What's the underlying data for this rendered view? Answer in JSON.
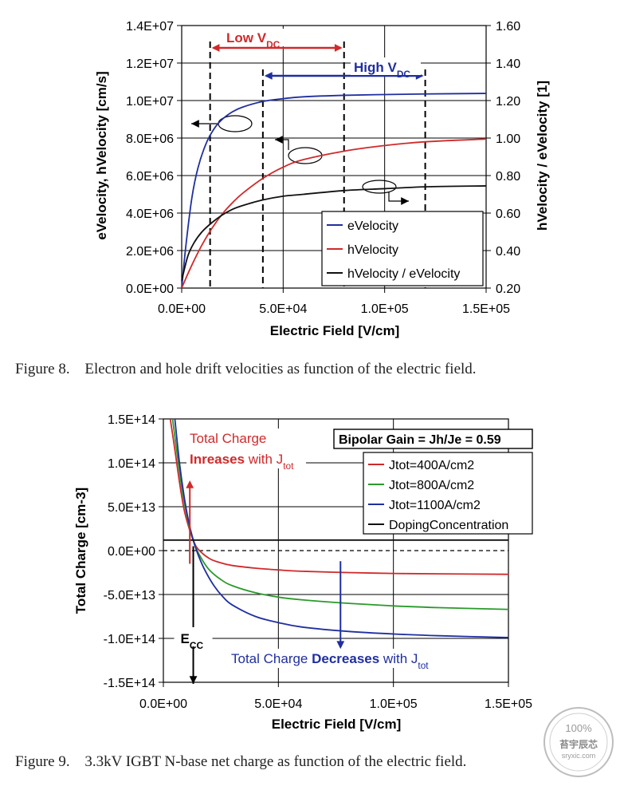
{
  "figures": [
    {
      "caption_number": "Figure 8.",
      "caption_text": "Electron and hole drift velocities as function of the electric field."
    },
    {
      "caption_number": "Figure 9.",
      "caption_text": "3.3kV IGBT N-base net charge as function of the electric field."
    }
  ],
  "chart_data": [
    {
      "type": "line",
      "xlabel": "Electric Field [V/cm]",
      "ylabel": "eVelocity, hVelocity [cm/s]",
      "y2label": "hVelocity / eVelocity [1]",
      "xlim": [
        0,
        150000
      ],
      "ylim": [
        0,
        14000000
      ],
      "y2lim": [
        0.2,
        1.6
      ],
      "xticks": [
        "0.0E+00",
        "5.0E+04",
        "1.0E+05",
        "1.5E+05"
      ],
      "yticks": [
        "0.0E+00",
        "2.0E+06",
        "4.0E+06",
        "6.0E+06",
        "8.0E+06",
        "1.0E+07",
        "1.2E+07",
        "1.4E+07"
      ],
      "y2ticks": [
        "0.20",
        "0.40",
        "0.60",
        "0.80",
        "1.00",
        "1.20",
        "1.40",
        "1.60"
      ],
      "grid": true,
      "legend_position": "lower-right",
      "series": [
        {
          "name": "eVelocity",
          "axis": "left",
          "color": "#1f2fa0",
          "x": [
            0,
            2000,
            5000,
            8000,
            12000,
            16000,
            20000,
            25000,
            30000,
            40000,
            50000,
            60000,
            80000,
            100000,
            120000,
            150000
          ],
          "y": [
            0,
            2200000,
            4800000,
            6400000,
            7700000,
            8500000,
            9000000,
            9400000,
            9650000,
            9950000,
            10100000,
            10200000,
            10280000,
            10320000,
            10350000,
            10380000
          ]
        },
        {
          "name": "hVelocity",
          "axis": "left",
          "color": "#d02a2a",
          "x": [
            0,
            3000,
            6000,
            10000,
            15000,
            20000,
            25000,
            30000,
            40000,
            50000,
            60000,
            80000,
            100000,
            120000,
            150000
          ],
          "y": [
            0,
            750000,
            1450000,
            2300000,
            3200000,
            3950000,
            4550000,
            5050000,
            5850000,
            6450000,
            6850000,
            7300000,
            7600000,
            7800000,
            7950000
          ]
        },
        {
          "name": "hVelocity / eVelocity",
          "axis": "right",
          "color": "#111111",
          "x": [
            0,
            3000,
            6000,
            10000,
            15000,
            20000,
            25000,
            30000,
            40000,
            50000,
            60000,
            80000,
            100000,
            120000,
            150000
          ],
          "y": [
            0.24,
            0.37,
            0.44,
            0.5,
            0.55,
            0.59,
            0.62,
            0.64,
            0.67,
            0.69,
            0.7,
            0.72,
            0.73,
            0.74,
            0.745
          ]
        }
      ],
      "annotations": {
        "low_vdc": {
          "label": "Low V",
          "sub": "DC",
          "x_from": 14000,
          "x_to": 80000,
          "color": "#d02a2a"
        },
        "high_vdc": {
          "label": "High V",
          "sub": "DC",
          "x_from": 40000,
          "x_to": 120000,
          "color": "#1f2fa0"
        }
      }
    },
    {
      "type": "line",
      "xlabel": "Electric Field [V/cm]",
      "ylabel": "Total Charge [cm-3]",
      "xlim": [
        0,
        150000
      ],
      "ylim": [
        -150000000000000,
        150000000000000
      ],
      "xticks": [
        "0.0E+00",
        "5.0E+04",
        "1.0E+05",
        "1.5E+05"
      ],
      "yticks": [
        "-1.5E+14",
        "-1.0E+14",
        "-5.0E+13",
        "0.0E+00",
        "5.0E+13",
        "1.0E+14",
        "1.5E+14"
      ],
      "grid": true,
      "legend_position": "top-right",
      "series": [
        {
          "name": "Jtot=400A/cm2",
          "color": "#d02a2a",
          "x": [
            3000,
            5000,
            7000,
            9000,
            11000,
            13000,
            15000,
            20000,
            25000,
            30000,
            40000,
            50000,
            60000,
            80000,
            100000,
            120000,
            150000
          ],
          "y": [
            150000000000000,
            115000000000000,
            78000000000000,
            47000000000000,
            27000000000000,
            12000000000000,
            2000000000000,
            -9000000000000,
            -14000000000000,
            -17000000000000,
            -20000000000000,
            -22000000000000,
            -23500000000000,
            -25000000000000,
            -26000000000000,
            -26500000000000,
            -27000000000000
          ]
        },
        {
          "name": "Jtot=800A/cm2",
          "color": "#2a9a2a",
          "x": [
            4000,
            6000,
            8000,
            10000,
            12000,
            14000,
            17000,
            20000,
            25000,
            30000,
            40000,
            50000,
            60000,
            80000,
            100000,
            120000,
            150000
          ],
          "y": [
            150000000000000,
            110000000000000,
            72000000000000,
            43000000000000,
            20000000000000,
            4000000000000,
            -11000000000000,
            -22000000000000,
            -33000000000000,
            -40000000000000,
            -48000000000000,
            -53000000000000,
            -56000000000000,
            -60000000000000,
            -63000000000000,
            -65000000000000,
            -67000000000000
          ]
        },
        {
          "name": "Jtot=1100A/cm2",
          "color": "#1f2fa0",
          "x": [
            5000,
            7000,
            9000,
            11000,
            13000,
            15000,
            18000,
            22000,
            26000,
            30000,
            40000,
            50000,
            60000,
            80000,
            100000,
            120000,
            150000
          ],
          "y": [
            150000000000000,
            100000000000000,
            62000000000000,
            33000000000000,
            12000000000000,
            -4000000000000,
            -22000000000000,
            -40000000000000,
            -53000000000000,
            -62000000000000,
            -75000000000000,
            -82000000000000,
            -87000000000000,
            -92000000000000,
            -95000000000000,
            -97000000000000,
            -99000000000000
          ]
        },
        {
          "name": "DopingConcentration",
          "color": "#111111",
          "x": [
            0,
            150000
          ],
          "y": [
            12000000000000,
            12000000000000
          ]
        }
      ],
      "annotations": {
        "bipolar_gain": "Bipolar Gain = Jh/Je = 0.59",
        "increase_line1": "Total Charge",
        "increase_bold": "Inreases",
        "increase_rest": " with J",
        "increase_sub": "tot",
        "decrease_plain": "Total Charge ",
        "decrease_bold": "Decreases",
        "decrease_rest": " with J",
        "decrease_sub": "tot",
        "ecc_label": "E",
        "ecc_sub": "CC",
        "ecc_x": 13000
      }
    }
  ],
  "watermark": {
    "badge": "100%",
    "line1": "苔宇辰芯",
    "line2": "sryxic.com"
  },
  "colors": {
    "red": "#d02a2a",
    "blue": "#1f2fa0",
    "green": "#2a9a2a",
    "black": "#111111",
    "grid": "#000000"
  }
}
